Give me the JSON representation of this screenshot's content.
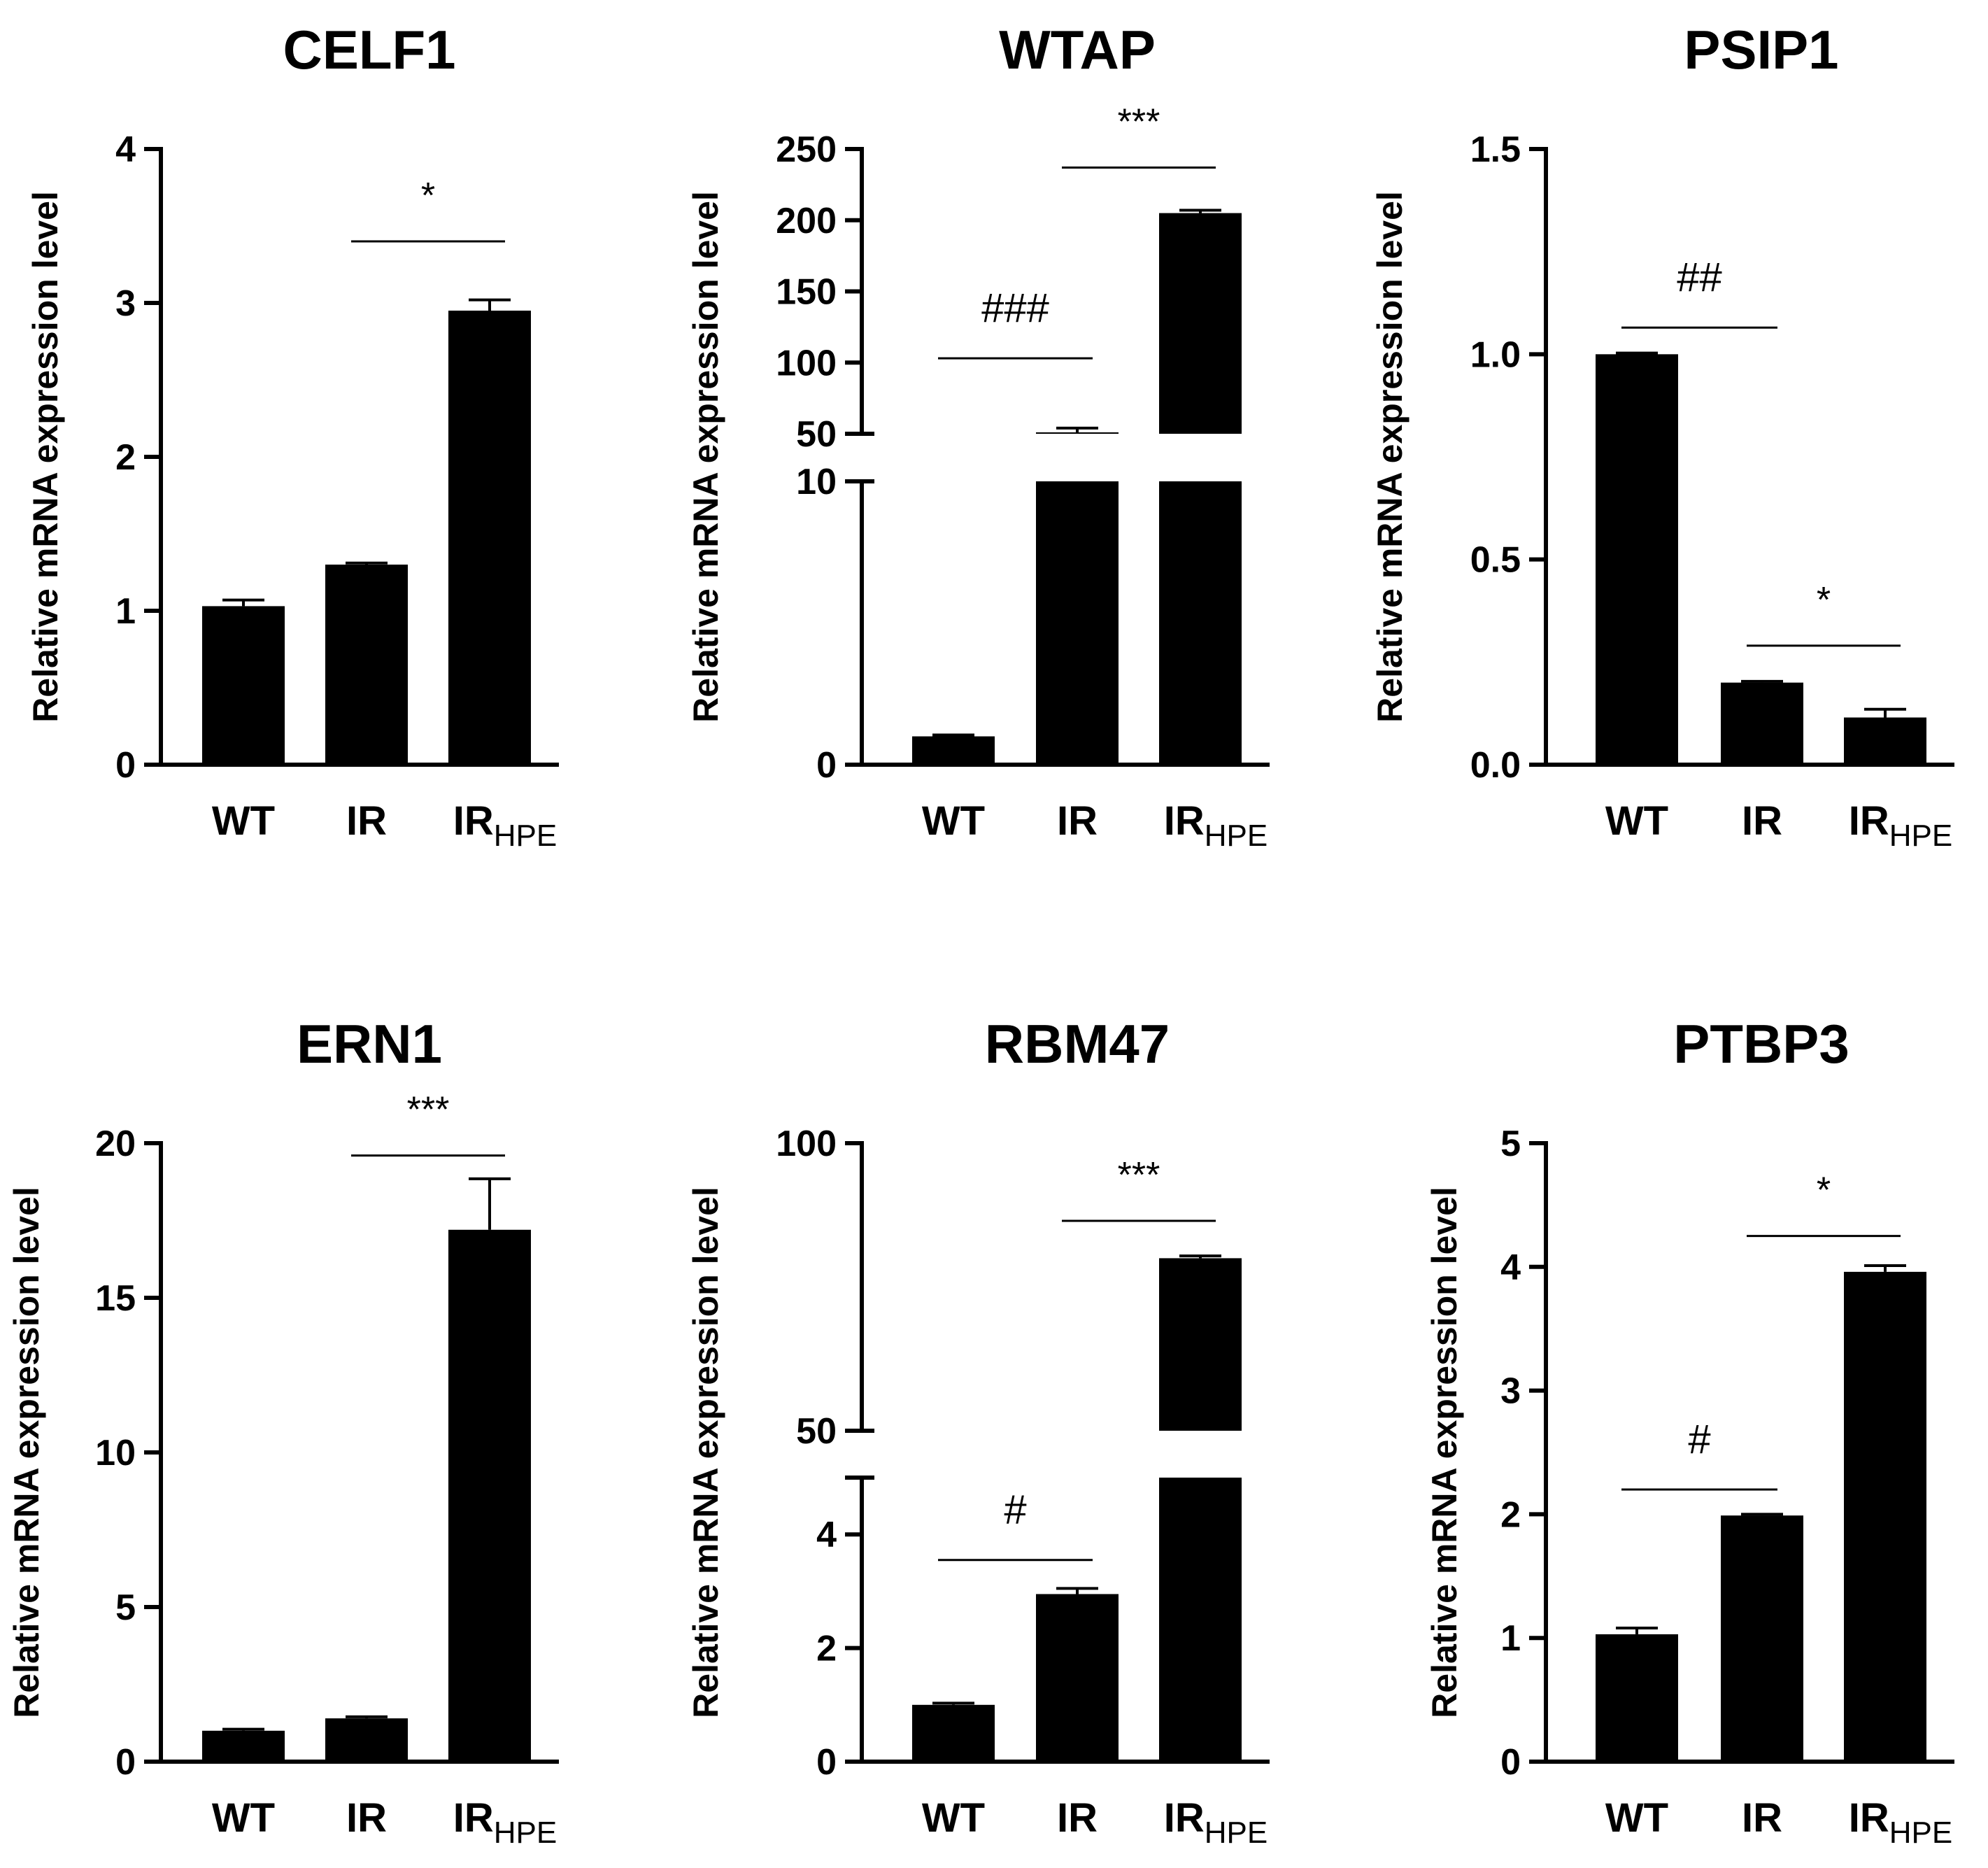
{
  "chart_data": [
    {
      "type": "bar",
      "title": "CELF1",
      "ylabel": "Relative mRNA expression level",
      "categories": [
        {
          "label": "WT",
          "sub": ""
        },
        {
          "label": "IR",
          "sub": ""
        },
        {
          "label": "IR",
          "sub": "HPE"
        }
      ],
      "values": [
        1.03,
        1.3,
        2.95
      ],
      "errors": [
        0.04,
        0.01,
        0.07
      ],
      "ylim": [
        0,
        4
      ],
      "yticks": [
        0,
        1,
        2,
        3,
        4
      ],
      "ytick_labels": [
        "0",
        "1",
        "2",
        "3",
        "4"
      ],
      "axis_break": null,
      "annotations": [
        {
          "from": 1,
          "to": 2,
          "text": "*",
          "y": 3.4,
          "kind": "star"
        }
      ]
    },
    {
      "type": "bar",
      "title": "WTAP",
      "ylabel": "Relative mRNA expression level",
      "categories": [
        {
          "label": "WT",
          "sub": ""
        },
        {
          "label": "IR",
          "sub": ""
        },
        {
          "label": "IR",
          "sub": "HPE"
        }
      ],
      "values": [
        1.0,
        51,
        205
      ],
      "errors": [
        0.05,
        3,
        2
      ],
      "ylim": [
        0,
        250
      ],
      "yticks": [
        0,
        10,
        50,
        100,
        150,
        200,
        250
      ],
      "ytick_labels": [
        "0",
        "10",
        "50",
        "100",
        "150",
        "200",
        "250"
      ],
      "axis_break": {
        "lower": [
          0,
          10
        ],
        "upper": [
          50,
          250
        ]
      },
      "annotations": [
        {
          "from": 0,
          "to": 1,
          "text": "###",
          "y": 103,
          "kind": "hash"
        },
        {
          "from": 1,
          "to": 2,
          "text": "***",
          "y": 237,
          "kind": "star"
        }
      ]
    },
    {
      "type": "bar",
      "title": "PSIP1",
      "ylabel": "Relative mRNA expression level",
      "categories": [
        {
          "label": "WT",
          "sub": ""
        },
        {
          "label": "IR",
          "sub": ""
        },
        {
          "label": "IR",
          "sub": "HPE"
        }
      ],
      "values": [
        1.0,
        0.2,
        0.115
      ],
      "errors": [
        0.003,
        0.003,
        0.02
      ],
      "ylim": [
        0,
        1.5
      ],
      "yticks": [
        0,
        0.5,
        1.0,
        1.5
      ],
      "ytick_labels": [
        "0.0",
        "0.5",
        "1.0",
        "1.5"
      ],
      "axis_break": null,
      "annotations": [
        {
          "from": 0,
          "to": 1,
          "text": "##",
          "y": 1.065,
          "kind": "hash"
        },
        {
          "from": 1,
          "to": 2,
          "text": "*",
          "y": 0.29,
          "kind": "star"
        }
      ]
    },
    {
      "type": "bar",
      "title": "ERN1",
      "ylabel": "Relative mRNA expression level",
      "categories": [
        {
          "label": "WT",
          "sub": ""
        },
        {
          "label": "IR",
          "sub": ""
        },
        {
          "label": "IR",
          "sub": "HPE"
        }
      ],
      "values": [
        1.0,
        1.4,
        17.2
      ],
      "errors": [
        0.05,
        0.05,
        1.65
      ],
      "ylim": [
        0,
        20
      ],
      "yticks": [
        0,
        5,
        10,
        15,
        20
      ],
      "ytick_labels": [
        "0",
        "5",
        "10",
        "15",
        "20"
      ],
      "axis_break": null,
      "annotations": [
        {
          "from": 1,
          "to": 2,
          "text": "***",
          "y": 19.6,
          "kind": "star"
        }
      ]
    },
    {
      "type": "bar",
      "title": "RBM47",
      "ylabel": "Relative mRNA expression level",
      "categories": [
        {
          "label": "WT",
          "sub": ""
        },
        {
          "label": "IR",
          "sub": ""
        },
        {
          "label": "IR",
          "sub": "HPE"
        }
      ],
      "values": [
        1.0,
        2.95,
        80
      ],
      "errors": [
        0.03,
        0.1,
        0.4
      ],
      "ylim": [
        0,
        100
      ],
      "yticks": [
        0,
        2,
        4,
        50,
        100
      ],
      "ytick_labels": [
        "0",
        "2",
        "4",
        "50",
        "100"
      ],
      "axis_break": {
        "lower": [
          0,
          5
        ],
        "upper": [
          50,
          100
        ]
      },
      "annotations": [
        {
          "from": 0,
          "to": 1,
          "text": "#",
          "y": 3.55,
          "kind": "hash"
        },
        {
          "from": 1,
          "to": 2,
          "text": "***",
          "y": 86.5,
          "kind": "star"
        }
      ]
    },
    {
      "type": "bar",
      "title": "PTBP3",
      "ylabel": "Relative mRNA expression level",
      "categories": [
        {
          "label": "WT",
          "sub": ""
        },
        {
          "label": "IR",
          "sub": ""
        },
        {
          "label": "IR",
          "sub": "HPE"
        }
      ],
      "values": [
        1.03,
        1.99,
        3.96
      ],
      "errors": [
        0.05,
        0.01,
        0.05
      ],
      "ylim": [
        0,
        5
      ],
      "yticks": [
        0,
        1,
        2,
        3,
        4,
        5
      ],
      "ytick_labels": [
        "0",
        "1",
        "2",
        "3",
        "4",
        "5"
      ],
      "axis_break": null,
      "annotations": [
        {
          "from": 0,
          "to": 1,
          "text": "#",
          "y": 2.2,
          "kind": "hash"
        },
        {
          "from": 1,
          "to": 2,
          "text": "*",
          "y": 4.25,
          "kind": "star"
        }
      ]
    }
  ]
}
